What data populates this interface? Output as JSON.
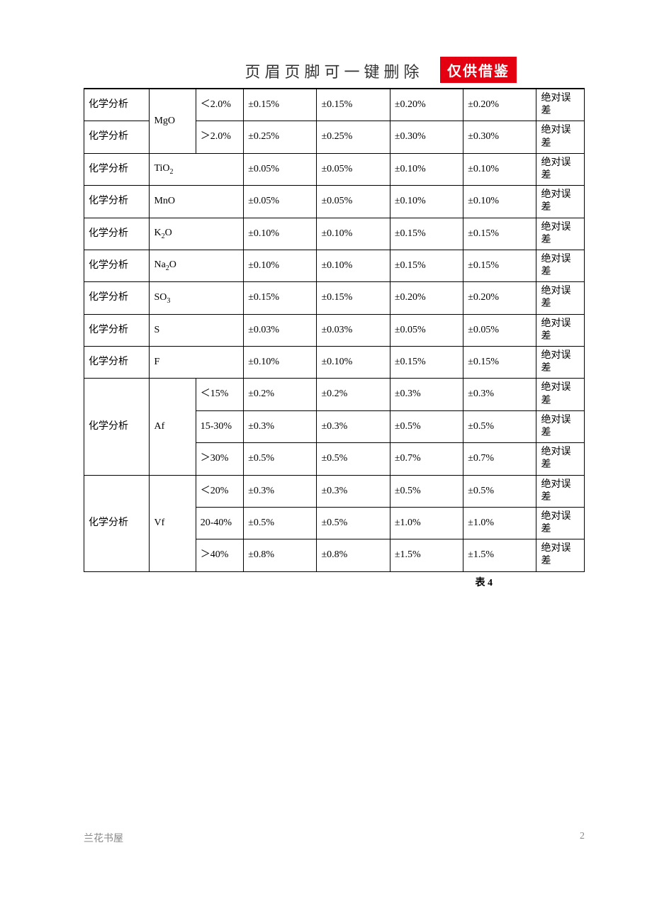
{
  "header": {
    "title": "页眉页脚可一键删除",
    "stamp": "仅供借鉴"
  },
  "table": {
    "caption": "表 4",
    "last_col_label": "绝对误差",
    "method_label": "化学分析",
    "columns": [
      "col-a",
      "col-b",
      "col-c",
      "col-d",
      "col-e",
      "col-f",
      "col-g",
      "col-h"
    ],
    "border_color": "#000000",
    "font_size": 14,
    "rows": [
      {
        "method": "化学分析",
        "compound": "MgO",
        "compound_rowspan": 2,
        "range": "＜2.0%",
        "v1": "±0.15%",
        "v2": "±0.15%",
        "v3": "±0.20%",
        "v4": "±0.20%",
        "err": "绝对误差",
        "no_top": true
      },
      {
        "method": "化学分析",
        "range": "＞2.0%",
        "v1": "±0.25%",
        "v2": "±0.25%",
        "v3": "±0.30%",
        "v4": "±0.30%",
        "err": "绝对误差"
      },
      {
        "method": "化学分析",
        "compound": "TiO₂",
        "range_colspan": 2,
        "v1": "±0.05%",
        "v2": "±0.05%",
        "v3": "±0.10%",
        "v4": "±0.10%",
        "err": "绝对误差"
      },
      {
        "method": "化学分析",
        "compound": "MnO",
        "range_colspan": 2,
        "v1": "±0.05%",
        "v2": "±0.05%",
        "v3": "±0.10%",
        "v4": "±0.10%",
        "err": "绝对误差"
      },
      {
        "method": "化学分析",
        "compound": "K₂O",
        "range_colspan": 2,
        "v1": "±0.10%",
        "v2": "±0.10%",
        "v3": "±0.15%",
        "v4": "±0.15%",
        "err": "绝对误差"
      },
      {
        "method": "化学分析",
        "compound": "Na₂O",
        "range_colspan": 2,
        "v1": "±0.10%",
        "v2": "±0.10%",
        "v3": "±0.15%",
        "v4": "±0.15%",
        "err": "绝对误差"
      },
      {
        "method": "化学分析",
        "compound": "SO₃",
        "range_colspan": 2,
        "v1": "±0.15%",
        "v2": "±0.15%",
        "v3": "±0.20%",
        "v4": "±0.20%",
        "err": "绝对误差"
      },
      {
        "method": "化学分析",
        "compound": "S",
        "range_colspan": 2,
        "v1": "±0.03%",
        "v2": "±0.03%",
        "v3": "±0.05%",
        "v4": "±0.05%",
        "err": "绝对误差"
      },
      {
        "method": "化学分析",
        "compound": "F",
        "range_colspan": 2,
        "v1": "±0.10%",
        "v2": "±0.10%",
        "v3": "±0.15%",
        "v4": "±0.15%",
        "err": "绝对误差"
      },
      {
        "method": "化学分析",
        "method_rowspan": 3,
        "compound": "Af",
        "compound_rowspan": 3,
        "range": "＜15%",
        "v1": "±0.2%",
        "v2": "±0.2%",
        "v3": "±0.3%",
        "v4": "±0.3%",
        "err": "绝对误差"
      },
      {
        "range": "15-30%",
        "v1": "±0.3%",
        "v2": "±0.3%",
        "v3": "±0.5%",
        "v4": "±0.5%",
        "err": "绝对误差"
      },
      {
        "range": "＞30%",
        "v1": "±0.5%",
        "v2": "±0.5%",
        "v3": "±0.7%",
        "v4": "±0.7%",
        "err": "绝对误差"
      },
      {
        "method": "化学分析",
        "method_rowspan": 3,
        "compound": "Vf",
        "compound_rowspan": 3,
        "range": "＜20%",
        "v1": "±0.3%",
        "v2": "±0.3%",
        "v3": "±0.5%",
        "v4": "±0.5%",
        "err": "绝对误差"
      },
      {
        "range": "20-40%",
        "v1": "±0.5%",
        "v2": "±0.5%",
        "v3": "±1.0%",
        "v4": "±1.0%",
        "err": "绝对误差"
      },
      {
        "range": "＞40%",
        "v1": "±0.8%",
        "v2": "±0.8%",
        "v3": "±1.5%",
        "v4": "±1.5%",
        "err": "绝对误差"
      }
    ]
  },
  "footer": {
    "left": "兰花书屋",
    "page": "2"
  },
  "colors": {
    "stamp_bg": "#e40010",
    "stamp_fg": "#ffffff",
    "text": "#000000",
    "footer_text": "#888888",
    "background": "#ffffff"
  }
}
